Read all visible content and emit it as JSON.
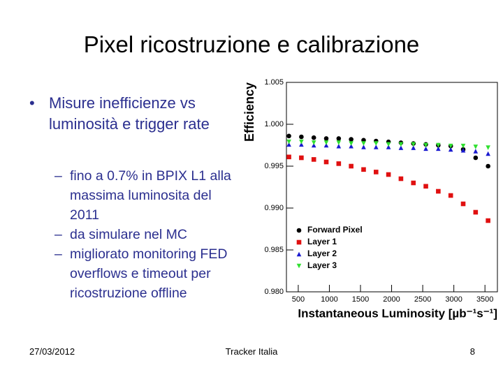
{
  "slide": {
    "title": "Pixel ricostruzione e calibrazione",
    "bullets": [
      {
        "text": "Misure inefficienze vs luminosità e trigger rate",
        "subbullets": [
          "fino a 0.7% in BPIX L1 alla massima luminosita del 2011",
          "da simulare nel MC",
          "migliorato monitoring FED overflows e timeout per ricostruzione offline"
        ]
      }
    ],
    "footer": {
      "date": "27/03/2012",
      "center": "Tracker Italia",
      "page": "8"
    }
  },
  "chart_data": {
    "type": "scatter",
    "x_label": "Instantaneous Luminosity [µb⁻¹s⁻¹]",
    "y_label": "Efficiency",
    "x": [
      350,
      550,
      750,
      950,
      1150,
      1350,
      1550,
      1750,
      1950,
      2150,
      2350,
      2550,
      2750,
      2950,
      3150,
      3350,
      3550
    ],
    "series": [
      {
        "name": "Forward Pixel",
        "color": "#000000",
        "marker": "circle",
        "values": [
          0.9986,
          0.9985,
          0.9984,
          0.9983,
          0.9983,
          0.9982,
          0.9981,
          0.998,
          0.9979,
          0.9978,
          0.9977,
          0.9976,
          0.9975,
          0.9974,
          0.997,
          0.996,
          0.995
        ]
      },
      {
        "name": "Layer 1",
        "color": "#e01010",
        "marker": "square",
        "values": [
          0.9961,
          0.996,
          0.9958,
          0.9955,
          0.9953,
          0.995,
          0.9946,
          0.9943,
          0.994,
          0.9935,
          0.993,
          0.9926,
          0.992,
          0.9915,
          0.9905,
          0.9895,
          0.9885
        ]
      },
      {
        "name": "Layer 2",
        "color": "#1a1ad0",
        "marker": "triangle",
        "values": [
          0.9976,
          0.9976,
          0.9975,
          0.9975,
          0.9974,
          0.9974,
          0.9973,
          0.9973,
          0.9973,
          0.9972,
          0.9972,
          0.9971,
          0.9971,
          0.997,
          0.9969,
          0.9968,
          0.9965
        ]
      },
      {
        "name": "Layer 3",
        "color": "#30e030",
        "marker": "triangle-down",
        "values": [
          0.9979,
          0.9979,
          0.9978,
          0.9978,
          0.9978,
          0.9977,
          0.9977,
          0.9977,
          0.9976,
          0.9976,
          0.9976,
          0.9975,
          0.9975,
          0.9974,
          0.9974,
          0.9973,
          0.9972
        ]
      }
    ],
    "xlim": [
      310,
      3700
    ],
    "xticks": [
      500,
      1000,
      1500,
      2000,
      2500,
      3000,
      3500
    ],
    "ylim": [
      0.98,
      1.005
    ],
    "yticks": [
      {
        "value": 0.98,
        "label": "0.980"
      },
      0.985,
      {
        "value": 0.99,
        "label": "0.990"
      },
      0.995,
      {
        "value": 1,
        "label": "1.000"
      },
      1.005
    ],
    "legend": "lower-left"
  }
}
